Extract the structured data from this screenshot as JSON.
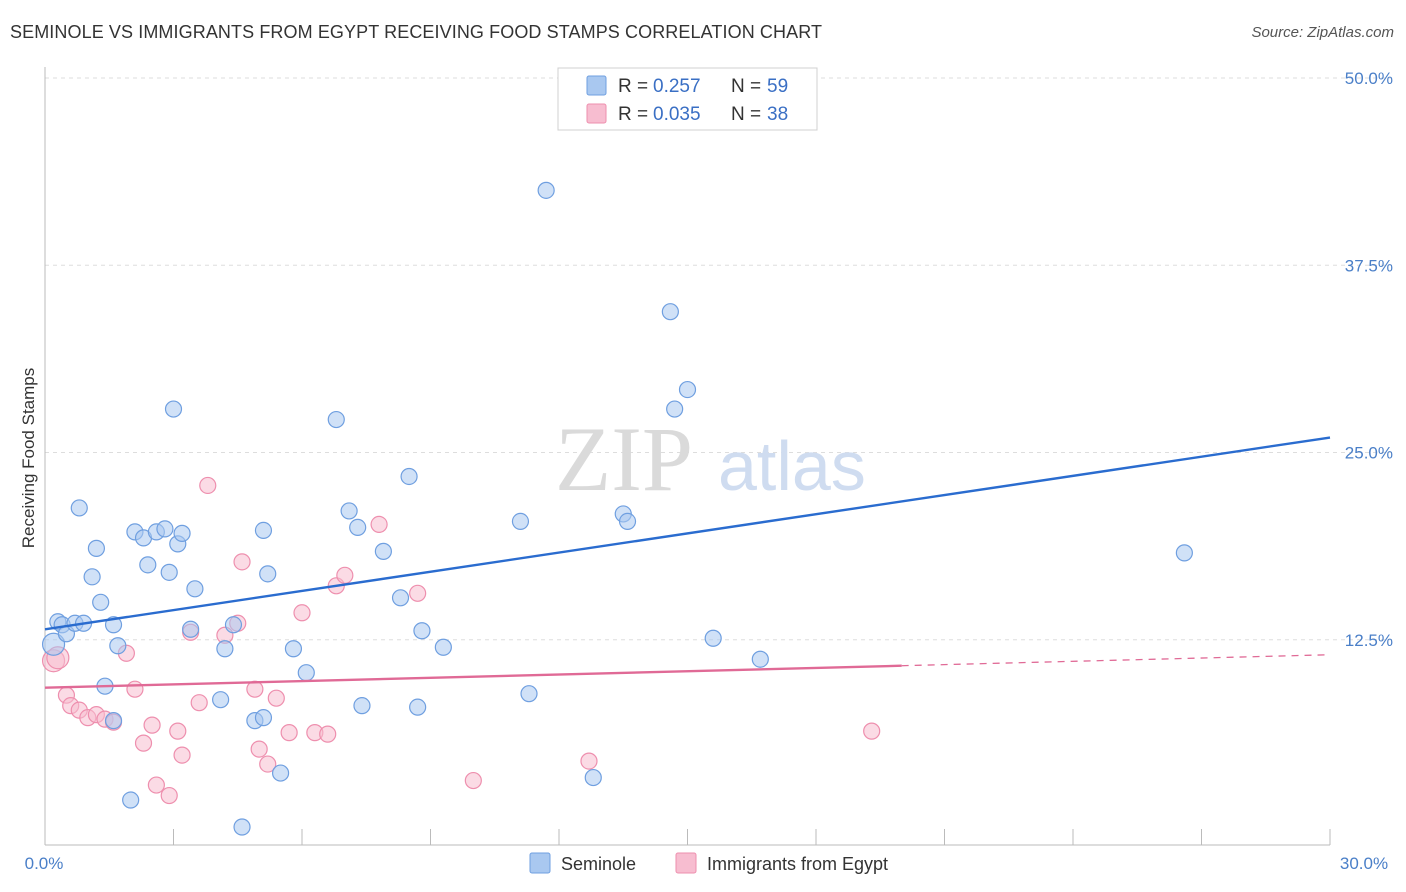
{
  "title": "SEMINOLE VS IMMIGRANTS FROM EGYPT RECEIVING FOOD STAMPS CORRELATION CHART",
  "source": "Source: ZipAtlas.com",
  "watermark": {
    "zip": "ZIP",
    "atlas": "atlas"
  },
  "legend": {
    "r_label": "R =",
    "n_label": "N =",
    "seminole_r": "0.257",
    "seminole_n": "59",
    "egypt_r": "0.035",
    "egypt_n": "38"
  },
  "colors": {
    "seminole": "#a9c8f0",
    "seminole_stroke": "#6f9fe0",
    "seminole_line": "#2a6ccf",
    "egypt": "#f7bdd0",
    "egypt_stroke": "#ee8fae",
    "egypt_line": "#e06a96",
    "grid": "#dddddd",
    "tick": "#4a7fc8"
  },
  "chart_data": {
    "type": "scatter",
    "title": "SEMINOLE VS IMMIGRANTS FROM EGYPT RECEIVING FOOD STAMPS CORRELATION CHART",
    "xlabel": "",
    "ylabel": "Receiving Food Stamps",
    "xlim": [
      0,
      30
    ],
    "ylim": [
      0,
      50
    ],
    "x_tick_labels": [
      "0.0%",
      "30.0%"
    ],
    "y_ticks": [
      12.5,
      25.0,
      37.5,
      50.0
    ],
    "y_tick_labels": [
      "12.5%",
      "25.0%",
      "37.5%",
      "50.0%"
    ],
    "grid": true,
    "legend_position": "top-center",
    "series": [
      {
        "name": "Seminole",
        "r": 0.257,
        "n": 59,
        "trend": {
          "x": [
            0,
            30
          ],
          "y": [
            13.2,
            26.0
          ]
        },
        "points": [
          [
            0.2,
            12.2
          ],
          [
            0.3,
            13.7
          ],
          [
            0.4,
            13.5
          ],
          [
            0.5,
            12.9
          ],
          [
            0.7,
            13.6
          ],
          [
            0.9,
            13.6
          ],
          [
            0.8,
            21.3
          ],
          [
            1.2,
            18.6
          ],
          [
            1.1,
            16.7
          ],
          [
            1.3,
            15.0
          ],
          [
            1.4,
            9.4
          ],
          [
            1.6,
            13.5
          ],
          [
            1.7,
            12.1
          ],
          [
            2.1,
            19.7
          ],
          [
            2.3,
            19.3
          ],
          [
            2.4,
            17.5
          ],
          [
            2.6,
            19.7
          ],
          [
            2.8,
            19.9
          ],
          [
            2.9,
            17.0
          ],
          [
            3.0,
            27.9
          ],
          [
            3.1,
            18.9
          ],
          [
            3.2,
            19.6
          ],
          [
            3.5,
            15.9
          ],
          [
            4.1,
            8.5
          ],
          [
            4.2,
            11.9
          ],
          [
            4.4,
            13.5
          ],
          [
            4.6,
            0.0
          ],
          [
            4.9,
            7.1
          ],
          [
            5.1,
            19.8
          ],
          [
            5.2,
            16.9
          ],
          [
            5.5,
            3.6
          ],
          [
            5.8,
            11.9
          ],
          [
            6.1,
            10.3
          ],
          [
            6.8,
            27.2
          ],
          [
            7.1,
            21.1
          ],
          [
            7.3,
            20.0
          ],
          [
            7.4,
            8.1
          ],
          [
            7.9,
            18.4
          ],
          [
            8.3,
            15.3
          ],
          [
            8.5,
            23.4
          ],
          [
            8.7,
            8.0
          ],
          [
            8.8,
            13.1
          ],
          [
            9.3,
            12.0
          ],
          [
            11.1,
            20.4
          ],
          [
            11.3,
            8.9
          ],
          [
            11.7,
            42.5
          ],
          [
            12.8,
            3.3
          ],
          [
            13.5,
            20.9
          ],
          [
            13.6,
            20.4
          ],
          [
            14.6,
            34.4
          ],
          [
            14.7,
            27.9
          ],
          [
            15.0,
            29.2
          ],
          [
            15.6,
            12.6
          ],
          [
            16.7,
            11.2
          ],
          [
            26.6,
            18.3
          ],
          [
            2.0,
            1.8
          ],
          [
            1.6,
            7.1
          ],
          [
            5.1,
            7.3
          ],
          [
            3.4,
            13.2
          ]
        ]
      },
      {
        "name": "Immigrants from Egypt",
        "r": 0.035,
        "n": 38,
        "trend": {
          "x": [
            0,
            30
          ],
          "y": [
            9.3,
            11.5
          ],
          "solid_until": 20
        },
        "points": [
          [
            0.2,
            11.1
          ],
          [
            0.3,
            11.3
          ],
          [
            0.5,
            8.8
          ],
          [
            0.6,
            8.1
          ],
          [
            0.8,
            7.8
          ],
          [
            1.0,
            7.3
          ],
          [
            1.2,
            7.5
          ],
          [
            1.4,
            7.2
          ],
          [
            1.6,
            7.0
          ],
          [
            1.9,
            11.6
          ],
          [
            2.1,
            9.2
          ],
          [
            2.3,
            5.6
          ],
          [
            2.5,
            6.8
          ],
          [
            2.6,
            2.8
          ],
          [
            2.9,
            2.1
          ],
          [
            3.1,
            6.4
          ],
          [
            3.2,
            4.8
          ],
          [
            3.4,
            13.0
          ],
          [
            3.6,
            8.3
          ],
          [
            3.8,
            22.8
          ],
          [
            4.2,
            12.8
          ],
          [
            4.5,
            13.6
          ],
          [
            4.6,
            17.7
          ],
          [
            4.9,
            9.2
          ],
          [
            5.0,
            5.2
          ],
          [
            5.2,
            4.2
          ],
          [
            5.4,
            8.6
          ],
          [
            5.7,
            6.3
          ],
          [
            6.0,
            14.3
          ],
          [
            6.3,
            6.3
          ],
          [
            6.6,
            6.2
          ],
          [
            6.8,
            16.1
          ],
          [
            7.0,
            16.8
          ],
          [
            7.8,
            20.2
          ],
          [
            8.7,
            15.6
          ],
          [
            10.0,
            3.1
          ],
          [
            12.7,
            4.4
          ],
          [
            19.3,
            6.4
          ]
        ]
      }
    ]
  },
  "bottom_legend": [
    "Seminole",
    "Immigrants from Egypt"
  ]
}
